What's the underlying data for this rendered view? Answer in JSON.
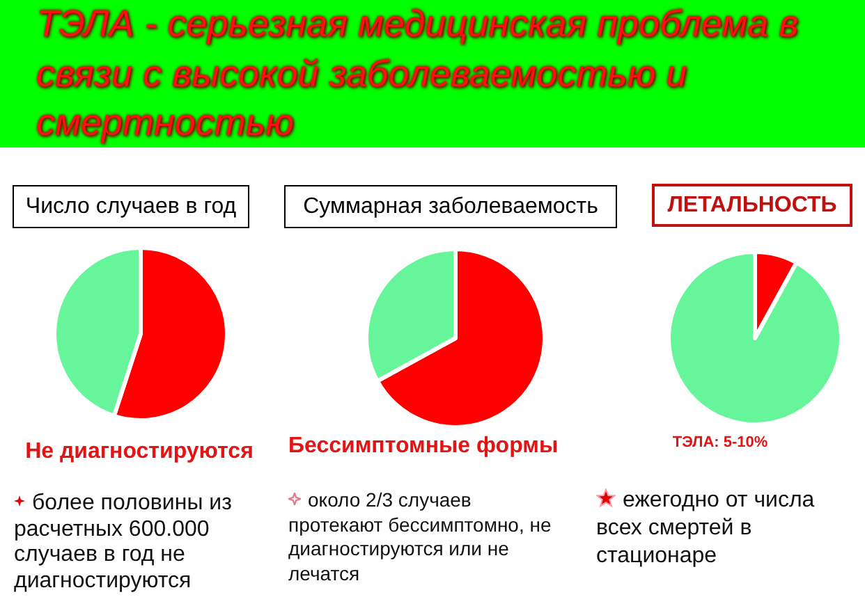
{
  "chart_data": [
    {
      "type": "other",
      "title": "ТЭЛА - серьезная медицинская проблема в связи с высокой заболеваемостью и смертностью"
    },
    {
      "type": "pie",
      "title": "Число случаев в год",
      "categories": [
        null,
        null
      ],
      "values": [
        55,
        45
      ],
      "colors": [
        "#ff0000",
        "#66f59a"
      ],
      "annotations": [
        "Не диагностируются",
        "более половины из расчетных 600.000 случаев в год не диагностируются"
      ]
    },
    {
      "type": "pie",
      "title": "Суммарная заболеваемость",
      "categories": [
        null,
        null
      ],
      "values": [
        67,
        33
      ],
      "colors": [
        "#ff0000",
        "#66f59a"
      ],
      "annotations": [
        "Бессимптомные формы",
        "около 2/3 случаев протекают бессимптомно, не диагностируются или не лечатся"
      ]
    },
    {
      "type": "pie",
      "title": "ЛЕТАЛЬНОСТЬ",
      "categories": [
        null,
        null
      ],
      "values": [
        8,
        92
      ],
      "colors": [
        "#ff0000",
        "#66f59a"
      ],
      "annotations": [
        "ТЭЛА: 5-10%",
        "ежегодно от числа всех смертей в стационаре"
      ]
    }
  ]
}
